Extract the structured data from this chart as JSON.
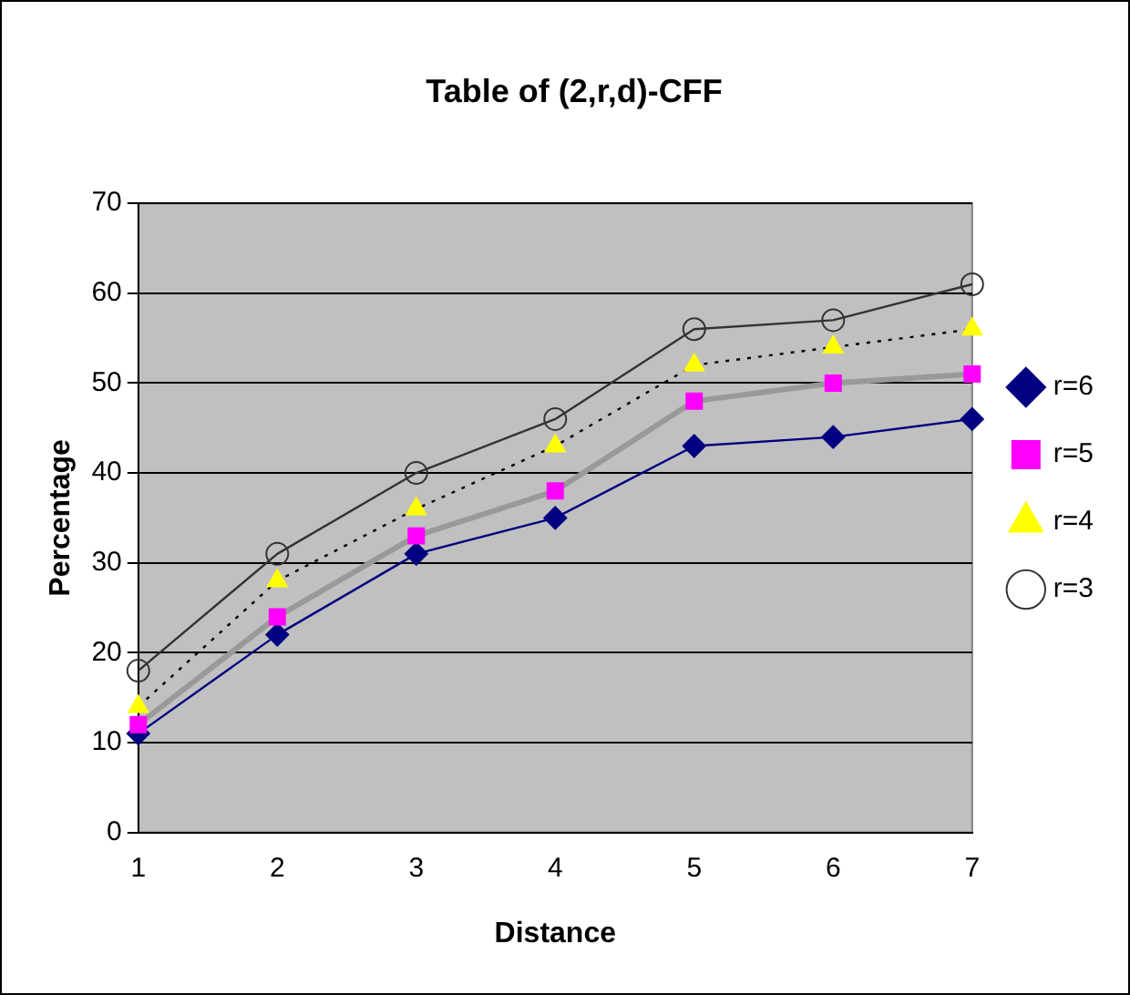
{
  "chart_data": {
    "type": "line",
    "title": "Table of (2,r,d)-CFF",
    "xlabel": "Distance",
    "ylabel": "Percentage",
    "categories": [
      "1",
      "2",
      "3",
      "4",
      "5",
      "6",
      "7"
    ],
    "ylim": [
      0,
      70
    ],
    "yticks": [
      0,
      10,
      20,
      30,
      40,
      50,
      60,
      70
    ],
    "grid": "y",
    "legend": "right",
    "series": [
      {
        "name": "r=6",
        "color": "#000080",
        "marker": "diamond",
        "line_style": "solid",
        "values": [
          11,
          22,
          31,
          35,
          43,
          44,
          46
        ]
      },
      {
        "name": "r=5",
        "color": "#999999",
        "colors": [
          "#ff00ff",
          "#ff00ff",
          "#ff00ff",
          "#ff00ff",
          "#ff00ff",
          "#ff00ff",
          "#ff00ff"
        ],
        "marker": "square",
        "line_style": "solid",
        "values": [
          12,
          24,
          33,
          38,
          48,
          50,
          51
        ]
      },
      {
        "name": "r=4",
        "color": "#000000",
        "colors": [
          "#ffff00",
          "#ffff00",
          "#ffff00",
          "#ffff00",
          "#ffff00",
          "#ffff00",
          "#ffff00"
        ],
        "marker": "triangle",
        "line_style": "dotted",
        "values": [
          14,
          28,
          36,
          43,
          52,
          54,
          56
        ]
      },
      {
        "name": "r=3",
        "color": "#333333",
        "marker": "circle",
        "line_style": "solid",
        "values": [
          18,
          31,
          40,
          46,
          56,
          57,
          61
        ]
      }
    ]
  }
}
